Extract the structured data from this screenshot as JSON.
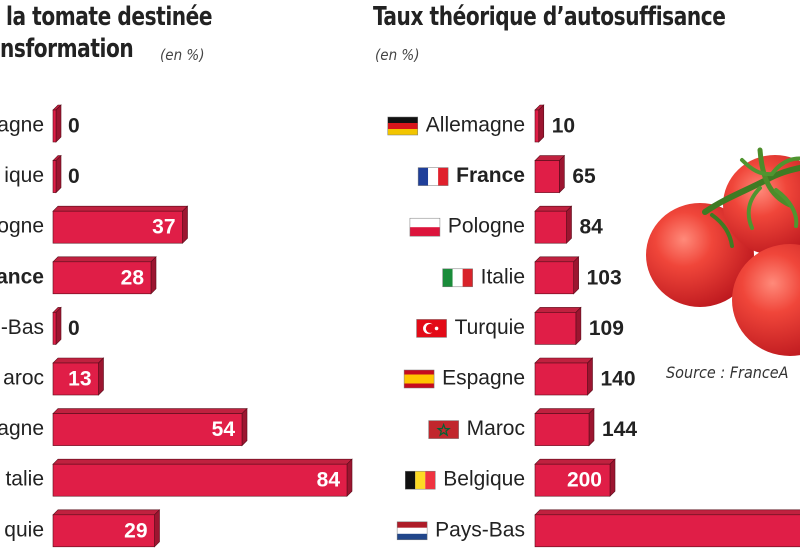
{
  "colors": {
    "bar_front": "#e01e47",
    "bar_side": "#9c1530",
    "bar_top": "#c0213f",
    "bar_edge": "#5a0c1a"
  },
  "left_panel": {
    "title_line1": "la tomate destinée",
    "title_line2": "nsformation",
    "unit": "(en %)"
  },
  "right_panel": {
    "title": "Taux théorique d’autosuffisance",
    "unit": "(en %)"
  },
  "source": "Source : FranceA",
  "chart_data": [
    {
      "type": "bar",
      "orientation": "horizontal",
      "categories": [
        "agne",
        "ique",
        "ologne",
        "ance",
        "-Bas",
        "aroc",
        "agne",
        "talie",
        "quie"
      ],
      "values": [
        0,
        0,
        37,
        28,
        0,
        13,
        54,
        84,
        29
      ],
      "value_labels": [
        "0",
        "0",
        "37",
        "28",
        "0",
        "13",
        "54",
        "84",
        "29"
      ],
      "label_placement": [
        "outside",
        "outside",
        "inside",
        "inside",
        "outside",
        "inside",
        "inside",
        "inside",
        "inside"
      ],
      "bold_categories": [
        "ance"
      ],
      "xlim": [
        0,
        84
      ]
    },
    {
      "type": "bar",
      "orientation": "horizontal",
      "categories": [
        "Allemagne",
        "France",
        "Pologne",
        "Italie",
        "Turquie",
        "Espagne",
        "Maroc",
        "Belgique",
        "Pays-Bas"
      ],
      "flags": [
        "flag-germany-icon",
        "flag-france-icon",
        "flag-poland-icon",
        "flag-italy-icon",
        "flag-turkey-icon",
        "flag-spain-icon",
        "flag-morocco-icon",
        "flag-belgium-icon",
        "flag-netherlands-icon"
      ],
      "values": [
        10,
        65,
        84,
        103,
        109,
        140,
        144,
        200,
        null
      ],
      "value_labels": [
        "10",
        "65",
        "84",
        "103",
        "109",
        "140",
        "144",
        "200",
        ""
      ],
      "label_placement": [
        "outside",
        "outside",
        "outside",
        "outside",
        "outside",
        "outside",
        "outside",
        "inside",
        "none"
      ],
      "bold_categories": [
        "France"
      ]
    }
  ]
}
